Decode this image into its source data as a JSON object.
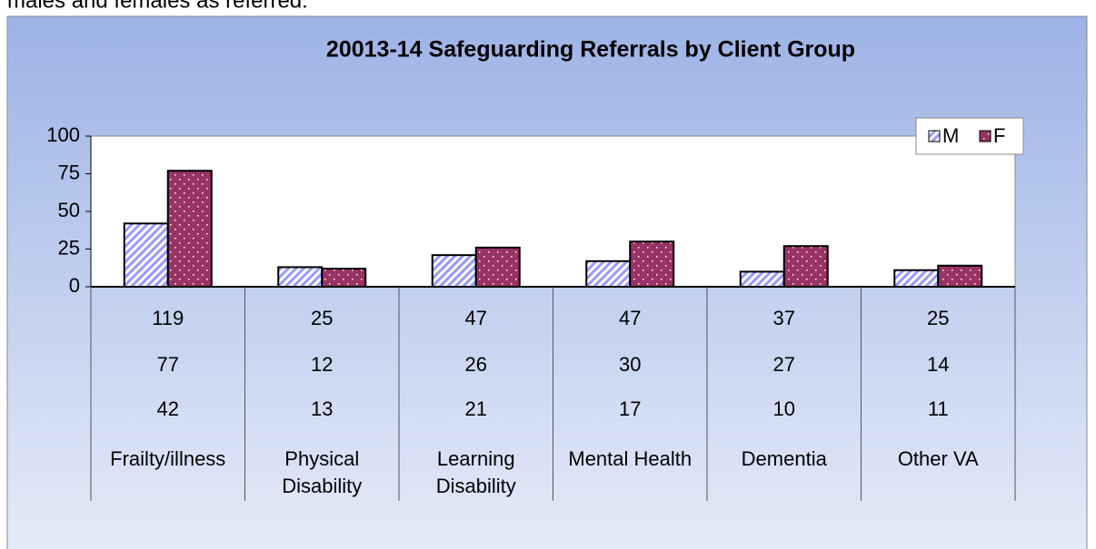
{
  "intro_text": "males and females as referred.",
  "chart_data": {
    "type": "bar",
    "title": "20013-14 Safeguarding Referrals by Client Group",
    "categories": [
      "Frailty/illness",
      "Physical Disability",
      "Learning Disability",
      "Mental Health",
      "Dementia",
      "Other VA"
    ],
    "series": [
      {
        "name": "M",
        "color": "#9999ff",
        "values": [
          42,
          13,
          21,
          17,
          10,
          11
        ]
      },
      {
        "name": "F",
        "color": "#993366",
        "values": [
          77,
          12,
          26,
          30,
          27,
          14
        ]
      }
    ],
    "totals": [
      119,
      25,
      47,
      47,
      37,
      25
    ],
    "ylim": [
      0,
      100
    ],
    "yticks": [
      0,
      25,
      50,
      75,
      100
    ],
    "grid": false,
    "legend": "top-right"
  }
}
